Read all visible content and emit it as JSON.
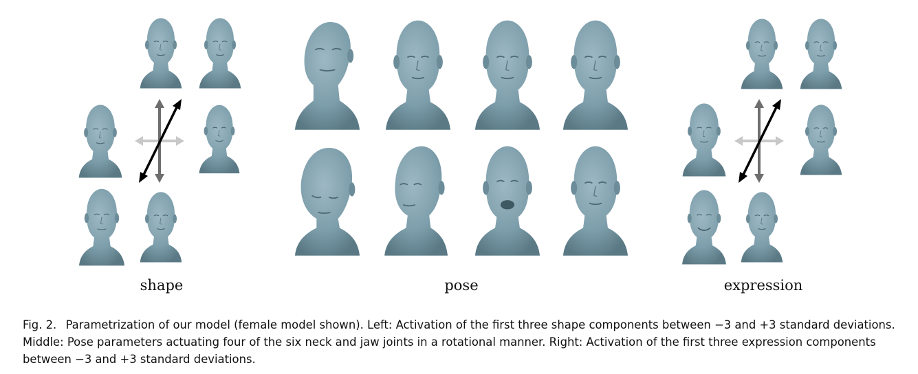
{
  "figure": {
    "labels": {
      "shape": "shape",
      "pose": "pose",
      "expression": "expression"
    },
    "head_color": "#7d9eab",
    "head_shade": "#5f7f8c",
    "arrow_primary_color": "#000000",
    "arrow_secondary_color": "#6e6e6e",
    "arrow_tertiary_color": "#c8c8c8"
  },
  "caption": {
    "label": "Fig. 2.",
    "text": "Parametrization of our model (female model shown). Left: Activation of the first three shape components between −3 and +3 standard deviations. Middle: Pose parameters actuating four of the six neck and jaw joints in a rotational manner. Right: Activation of the first three expression components between −3 and +3 standard deviations."
  }
}
